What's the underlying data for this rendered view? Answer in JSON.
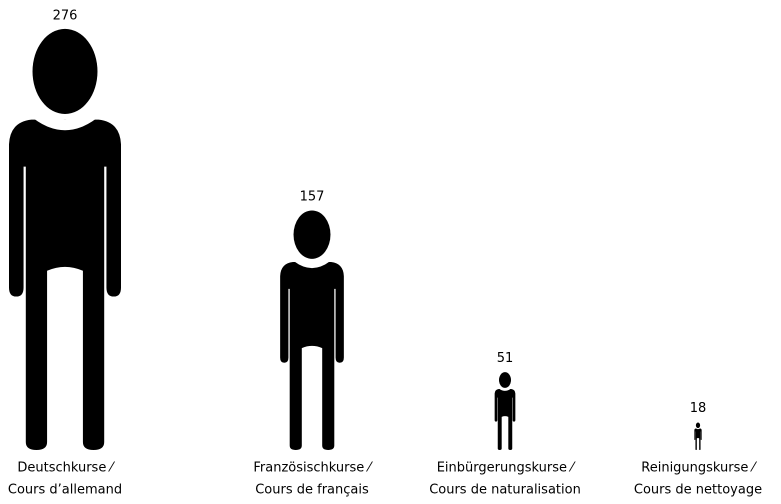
{
  "chart_data": {
    "type": "pictogram",
    "categories": [
      [
        "Deutschkurse ⁄",
        "Cours d’allemand"
      ],
      [
        "Französischkurse ⁄",
        "Cours de français"
      ],
      [
        "Einbürgerungskurse ⁄",
        "Cours de naturalisation"
      ],
      [
        "Reinigungskurse ⁄",
        "Cours de nettoyage"
      ]
    ],
    "values": [
      276,
      157,
      51,
      18
    ],
    "color": "#000000"
  }
}
